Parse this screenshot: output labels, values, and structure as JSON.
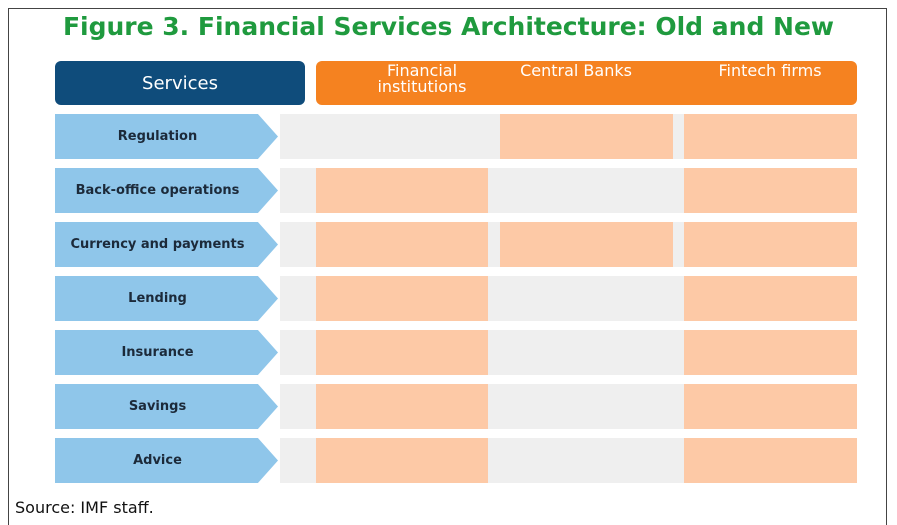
{
  "title": "Figure 3. Financial Services Architecture: Old and New",
  "header": {
    "services": "Services",
    "providers": [
      "Financial institutions",
      "Central Banks",
      "Fintech firms"
    ]
  },
  "rows": [
    {
      "label": "Regulation",
      "provided_by": [
        false,
        true,
        true
      ]
    },
    {
      "label": "Back-office operations",
      "provided_by": [
        true,
        false,
        true
      ]
    },
    {
      "label": "Currency and payments",
      "provided_by": [
        true,
        true,
        true
      ]
    },
    {
      "label": "Lending",
      "provided_by": [
        true,
        false,
        true
      ]
    },
    {
      "label": "Insurance",
      "provided_by": [
        true,
        false,
        true
      ]
    },
    {
      "label": "Savings",
      "provided_by": [
        true,
        false,
        true
      ]
    },
    {
      "label": "Advice",
      "provided_by": [
        true,
        false,
        true
      ]
    }
  ],
  "source": "Source: IMF staff."
}
